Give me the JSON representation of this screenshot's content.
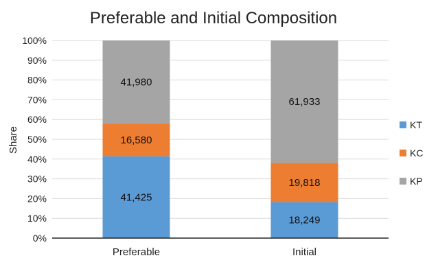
{
  "chart_data": {
    "type": "bar",
    "stacked": "percent",
    "title": "Preferable and Initial Composition",
    "xlabel": "",
    "ylabel": "Share",
    "categories": [
      "Preferable",
      "Initial"
    ],
    "series": [
      {
        "name": "KT",
        "values": [
          41425,
          18249
        ],
        "labels": [
          "41,425",
          "18,249"
        ],
        "color": "#5b9bd5"
      },
      {
        "name": "KC",
        "values": [
          16580,
          19818
        ],
        "labels": [
          "16,580",
          "19,818"
        ],
        "color": "#ed7d31"
      },
      {
        "name": "KP",
        "values": [
          41980,
          61933
        ],
        "labels": [
          "41,980",
          "61,933"
        ],
        "color": "#a5a5a5"
      }
    ],
    "yticks": [
      "0%",
      "10%",
      "20%",
      "30%",
      "40%",
      "50%",
      "60%",
      "70%",
      "80%",
      "90%",
      "100%"
    ],
    "ylim": [
      0,
      100
    ],
    "grid": true,
    "legend_position": "right"
  }
}
